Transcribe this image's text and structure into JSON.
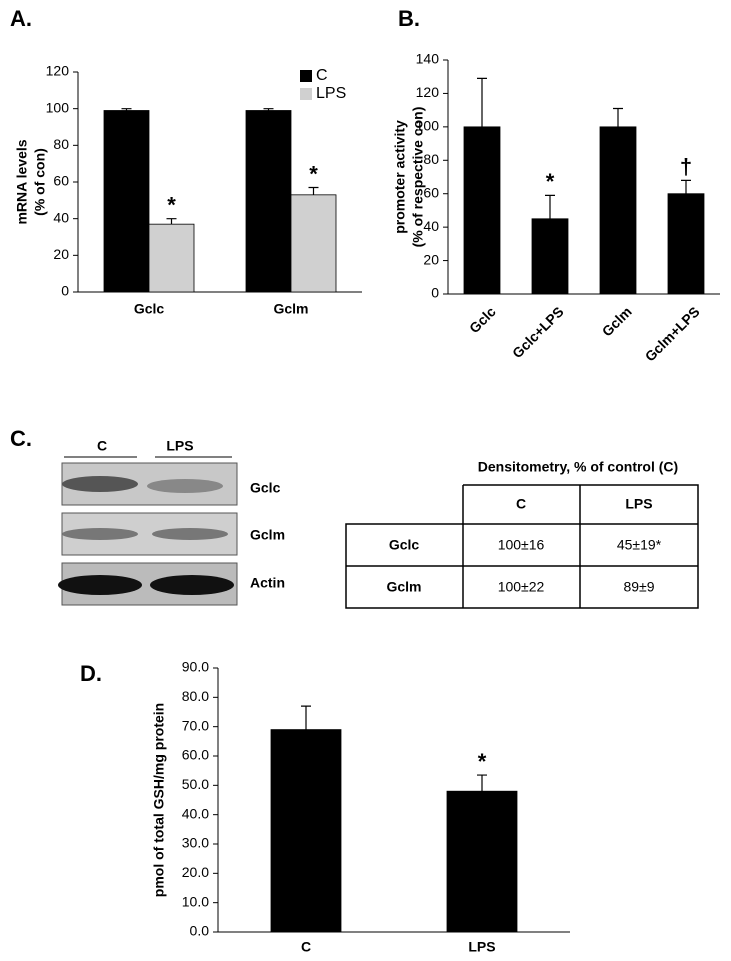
{
  "chart_data": [
    {
      "type": "bar",
      "panel_label": "A.",
      "ylabel": [
        "mRNA levels",
        "(% of con)"
      ],
      "categories": [
        "Gclc",
        "Gclm"
      ],
      "series": [
        {
          "name": "C",
          "color": "#000000",
          "values": [
            99,
            99
          ],
          "errors": [
            1,
            1
          ],
          "annotations": [
            null,
            null
          ]
        },
        {
          "name": "LPS",
          "color": "#d0d0d0",
          "values": [
            37,
            53
          ],
          "errors": [
            3,
            4
          ],
          "annotations": [
            "*",
            "*"
          ]
        }
      ],
      "ylim": [
        0,
        120
      ],
      "yticks": [
        0,
        20,
        40,
        60,
        80,
        100,
        120
      ],
      "legend": "top-right"
    },
    {
      "type": "bar",
      "panel_label": "B.",
      "ylabel": [
        "promoter activity",
        "(% of respective con)"
      ],
      "categories": [
        "Gclc",
        "Gclc+LPS",
        "Gclm",
        "Gclm+LPS"
      ],
      "series": [
        {
          "color": "#000000",
          "values": [
            100,
            45,
            100,
            60
          ],
          "errors": [
            29,
            14,
            11,
            8
          ],
          "annotations": [
            null,
            "*",
            null,
            "†"
          ]
        }
      ],
      "ylim": [
        0,
        140
      ],
      "yticks": [
        0,
        20,
        40,
        60,
        80,
        100,
        120,
        140
      ],
      "rotate_xlabels": true
    },
    {
      "type": "bar",
      "panel_label": "D.",
      "ylabel": [
        "pmol of total GSH/mg protein"
      ],
      "categories": [
        "C",
        "LPS"
      ],
      "series": [
        {
          "color": "#000000",
          "values": [
            69,
            48
          ],
          "errors": [
            8,
            5.5
          ],
          "annotations": [
            null,
            "*"
          ]
        }
      ],
      "ylim": [
        0,
        90
      ],
      "yticks": [
        {
          "value": 0,
          "label": "0.0"
        },
        {
          "value": 10,
          "label": "10.0"
        },
        {
          "value": 20,
          "label": "20.0"
        },
        {
          "value": 30,
          "label": "30.0"
        },
        {
          "value": 40,
          "label": "40.0"
        },
        {
          "value": 50,
          "label": "50.0"
        },
        {
          "value": 60,
          "label": "60.0"
        },
        {
          "value": 70,
          "label": "70.0"
        },
        {
          "value": 80,
          "label": "80.0"
        },
        {
          "value": 90,
          "label": "90.0"
        }
      ]
    }
  ],
  "blot": {
    "panel_label": "C.",
    "lanes": [
      "C",
      "LPS"
    ],
    "bands": [
      "Gclc",
      "Gclm",
      "Actin"
    ]
  },
  "table": {
    "title": "Densitometry, % of control (C)",
    "columns": [
      "C",
      "LPS"
    ],
    "rows": [
      [
        "Gclc",
        "100±16",
        "45±19*"
      ],
      [
        "Gclm",
        "100±22",
        "89±9"
      ]
    ]
  }
}
